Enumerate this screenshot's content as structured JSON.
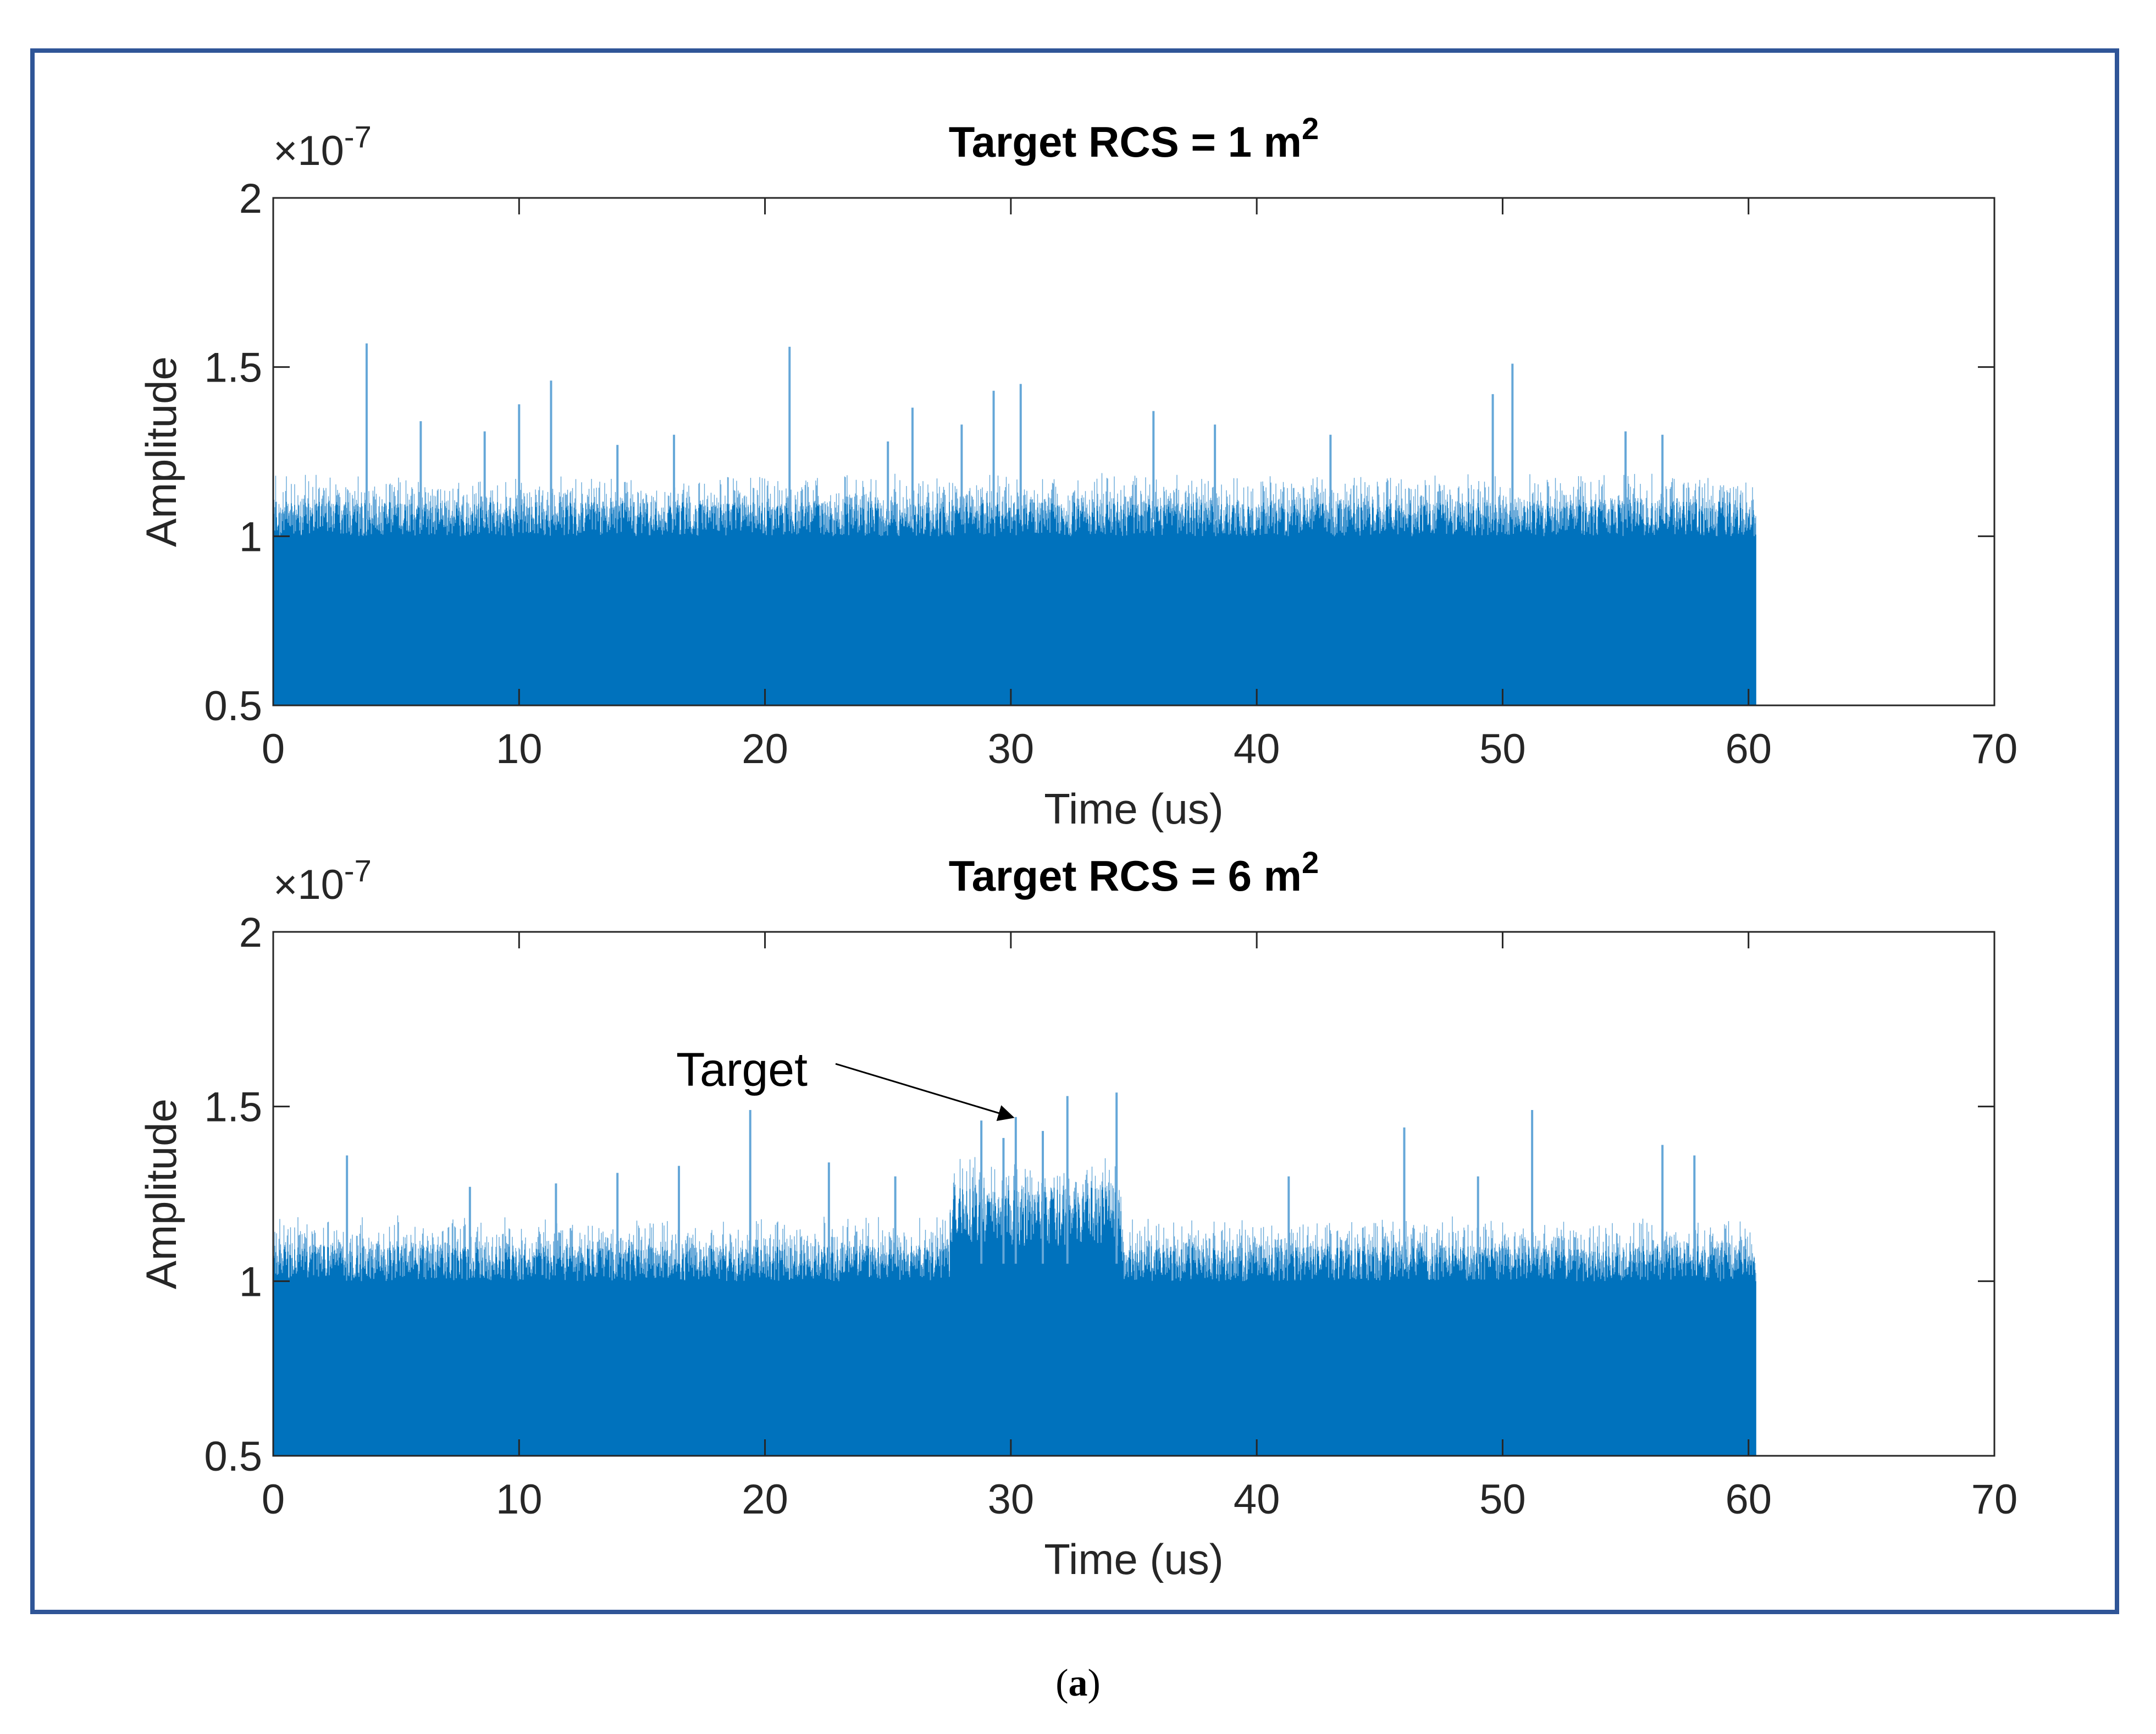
{
  "caption": {
    "open": "(",
    "label": "a",
    "close": ")"
  },
  "colors": {
    "series": "#0072bd",
    "series_light": "#65a7d8",
    "frame": "#2f5597",
    "axis": "#262626"
  },
  "chart_data": [
    {
      "type": "line",
      "title": {
        "text": "Target RCS = 1 m",
        "superscript": "2"
      },
      "xlabel": "Time (us)",
      "ylabel": "Amplitude",
      "exponent": {
        "base": "×10",
        "power": "-7"
      },
      "xlim": [
        0,
        70
      ],
      "ylim": [
        0.5,
        2
      ],
      "xticks": [
        "0",
        "10",
        "20",
        "30",
        "40",
        "50",
        "60",
        "70"
      ],
      "yticks": [
        "0.5",
        "1",
        "1.5",
        "2"
      ],
      "signal_end_us": 60.3,
      "noise_band_e7": [
        1.0,
        1.12
      ],
      "peaks": [
        {
          "x": 3.8,
          "y": 1.57
        },
        {
          "x": 21.0,
          "y": 1.56
        },
        {
          "x": 11.3,
          "y": 1.46
        },
        {
          "x": 10.0,
          "y": 1.39
        },
        {
          "x": 50.4,
          "y": 1.51
        },
        {
          "x": 49.6,
          "y": 1.42
        },
        {
          "x": 29.3,
          "y": 1.43
        },
        {
          "x": 30.4,
          "y": 1.45
        },
        {
          "x": 26.0,
          "y": 1.38
        },
        {
          "x": 35.8,
          "y": 1.37
        },
        {
          "x": 38.3,
          "y": 1.33
        },
        {
          "x": 6.0,
          "y": 1.34
        },
        {
          "x": 8.6,
          "y": 1.31
        },
        {
          "x": 16.3,
          "y": 1.3
        },
        {
          "x": 28.0,
          "y": 1.33
        },
        {
          "x": 43.0,
          "y": 1.3
        },
        {
          "x": 55.0,
          "y": 1.31
        },
        {
          "x": 56.5,
          "y": 1.3
        },
        {
          "x": 25.0,
          "y": 1.28
        },
        {
          "x": 14.0,
          "y": 1.27
        }
      ]
    },
    {
      "type": "line",
      "title": {
        "text": "Target RCS = 6  m",
        "superscript": "2"
      },
      "xlabel": "Time (us)",
      "ylabel": "Amplitude",
      "exponent": {
        "base": "×10",
        "power": "-7"
      },
      "xlim": [
        0,
        70
      ],
      "ylim": [
        0.5,
        2
      ],
      "xticks": [
        "0",
        "10",
        "20",
        "30",
        "40",
        "50",
        "60",
        "70"
      ],
      "yticks": [
        "0.5",
        "1",
        "1.5",
        "2"
      ],
      "signal_end_us": 60.3,
      "noise_band_e7": [
        1.0,
        1.12
      ],
      "target_region_us": [
        27.5,
        34.5
      ],
      "target_band_e7": [
        1.1,
        1.3
      ],
      "peaks": [
        {
          "x": 3.0,
          "y": 1.36
        },
        {
          "x": 19.4,
          "y": 1.49
        },
        {
          "x": 22.6,
          "y": 1.34
        },
        {
          "x": 16.5,
          "y": 1.33
        },
        {
          "x": 14.0,
          "y": 1.31
        },
        {
          "x": 28.8,
          "y": 1.46
        },
        {
          "x": 30.2,
          "y": 1.47
        },
        {
          "x": 32.3,
          "y": 1.53
        },
        {
          "x": 34.3,
          "y": 1.54
        },
        {
          "x": 31.3,
          "y": 1.43
        },
        {
          "x": 29.7,
          "y": 1.41
        },
        {
          "x": 51.2,
          "y": 1.49
        },
        {
          "x": 46.0,
          "y": 1.44
        },
        {
          "x": 56.5,
          "y": 1.39
        },
        {
          "x": 57.8,
          "y": 1.36
        },
        {
          "x": 41.3,
          "y": 1.3
        },
        {
          "x": 49.0,
          "y": 1.3
        },
        {
          "x": 11.5,
          "y": 1.28
        },
        {
          "x": 8.0,
          "y": 1.27
        },
        {
          "x": 25.3,
          "y": 1.3
        }
      ],
      "annotation": {
        "text": "Target",
        "x": 30.2,
        "y": 1.45
      }
    }
  ]
}
